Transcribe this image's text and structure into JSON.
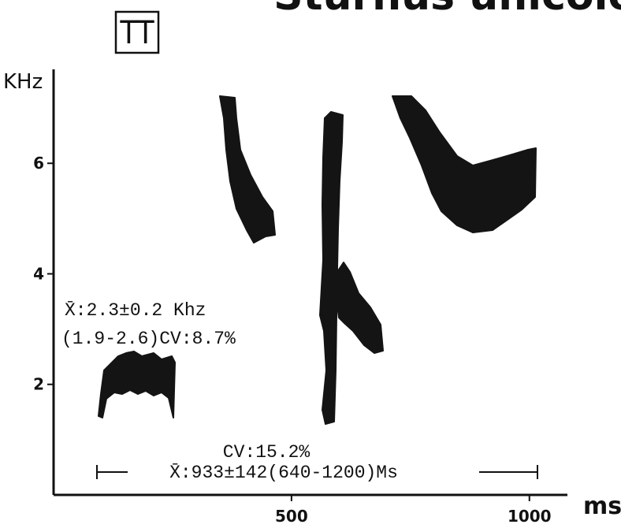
{
  "chart_data": {
    "type": "spectrogram",
    "title": "Sturnus unicolor",
    "panel_label": "TT",
    "y_label": "KHz",
    "x_label": "ms",
    "xlim": [
      0,
      1060
    ],
    "ylim": [
      0,
      7.7
    ],
    "xticks": [
      500,
      1000
    ],
    "yticks": [
      2,
      4,
      6
    ],
    "annotations": [
      "X̄:2.3±0.2 Khz",
      "(1.9-2.6)CV:8.7%",
      "CV:15.2%",
      "X̄:933±142(640-1200)Ms"
    ]
  }
}
